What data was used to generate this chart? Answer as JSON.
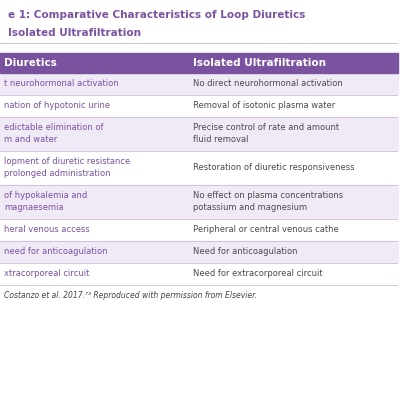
{
  "title_line1": "e 1: Comparative Characteristics of Loop Diuretics",
  "title_line2": "Isolated Ultrafiltration",
  "title_color": "#7b52a0",
  "header_bg": "#7b52a0",
  "header_text_color": "#ffffff",
  "header_col1": "Diuretics",
  "header_col2": "Isolated Ultrafiltration",
  "row_bg_even": "#f0eaf6",
  "row_bg_odd": "#ffffff",
  "divider_color": "#c8aede",
  "text_color_col1": "#7b52a0",
  "text_color_col2": "#4a4a4a",
  "rows": [
    [
      "t neurohormonal activation",
      "No direct neurohormonal activation"
    ],
    [
      "nation of hypotonic urine",
      "Removal of isotonic plasma water"
    ],
    [
      "edictable elimination of\nm and water",
      "Precise control of rate and amount\nfluid removal"
    ],
    [
      "lopment of diuretic resistance\nprolonged administration",
      "Restoration of diuretic responsiveness"
    ],
    [
      "of hypokalemia and\nmagnaesemia",
      "No effect on plasma concentrations\npotassium and magnesium"
    ],
    [
      "heral venous access",
      "Peripheral or central venous cathe"
    ],
    [
      "need for anticoagulation",
      "Need for anticoagulation"
    ],
    [
      "xtracorporeal circuit",
      "Need for extracorporeal circuit"
    ]
  ],
  "footnote": "Costanzo et al. 2017.⁷³ Reproduced with permission from Elsevier.",
  "background_color": "#ffffff",
  "figsize": [
    4.0,
    4.0
  ],
  "dpi": 100
}
